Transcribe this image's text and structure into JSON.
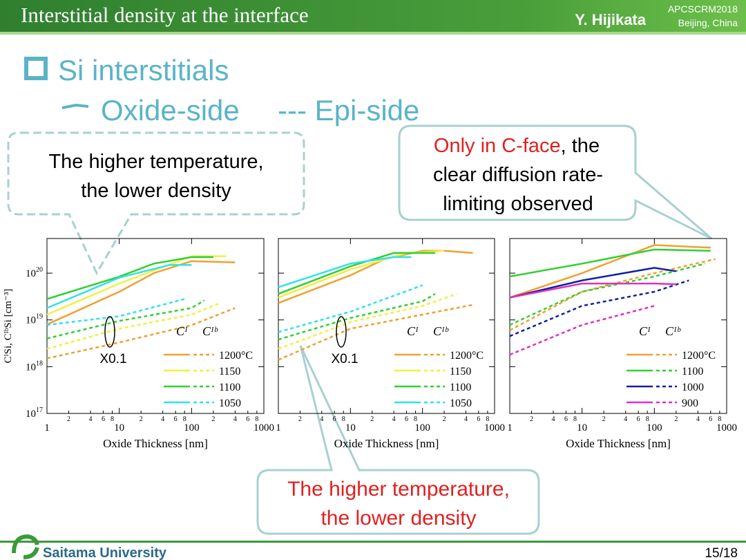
{
  "header": {
    "title": "Interstitial density at the interface",
    "author": "Y. Hijikata",
    "conference": "APCSCRM2018",
    "place": "Beijing, China"
  },
  "bullet": {
    "title": "Si interstitials",
    "oxide": "Oxide-side",
    "epi": "--- Epi-side"
  },
  "callouts": [
    {
      "lines": [
        "The higher temperature,",
        "the lower density"
      ]
    },
    {
      "highlight": "Only in C-face",
      "lines": [
        ", the",
        "clear diffusion rate-",
        "limiting observed"
      ]
    },
    {
      "lines": [
        "The higher temperature,",
        "the lower density"
      ]
    }
  ],
  "chart_data": [
    {
      "type": "line",
      "x_scale": "log",
      "y_scale": "log",
      "xlim": [
        1,
        1000
      ],
      "ylim": [
        1e+17,
        5.5e+20
      ],
      "xticks": [
        1,
        10,
        100,
        1000
      ],
      "xticks_minor": [
        2,
        4,
        6,
        8,
        {
          "value": 20,
          "label": "2"
        },
        {
          "value": 40,
          "label": "4"
        },
        {
          "value": 60,
          "label": "6"
        },
        {
          "value": 80,
          "label": "8"
        },
        {
          "value": 200,
          "label": "2"
        },
        {
          "value": 400,
          "label": "4"
        },
        {
          "value": 600,
          "label": "6"
        },
        {
          "value": 800,
          "label": "8"
        }
      ],
      "yticks": [
        {
          "value": 1e+17,
          "label": "10",
          "exponent": "17"
        },
        {
          "value": 1e+18,
          "label": "10",
          "exponent": "18"
        },
        {
          "value": 1e+19,
          "label": "10",
          "exponent": "19"
        },
        {
          "value": 1e+20,
          "label": "10",
          "exponent": "20"
        }
      ],
      "y_label": "CᴵSi, CᴵᵇSi [cm⁻³]",
      "x_label": "Oxide Thickness [nm]",
      "legend_headers": [
        "Cᴵ",
        "Cᴵᵇ"
      ],
      "annotation": "X0.1",
      "series": [
        {
          "name": "1200°C",
          "color": "#f0a030",
          "x": [
            1,
            10,
            30,
            100,
            400
          ],
          "values": [
            8e+18,
            4e+19,
            1e+20,
            1.8e+20,
            1.7e+20
          ],
          "epi_x": [
            1,
            10,
            100,
            400
          ],
          "epi_values": [
            1.5e+18,
            3.3e+18,
            7.7e+18,
            1.8e+19
          ]
        },
        {
          "name": "1150",
          "color": "#f0f040",
          "x": [
            1,
            10,
            100,
            300
          ],
          "values": [
            1.3e+19,
            6e+19,
            2.3e+20,
            2.3e+20
          ],
          "epi_x": [
            1,
            10,
            100,
            250
          ],
          "epi_values": [
            2.4e+18,
            6.5e+18,
            1.3e+19,
            2.3e+19
          ]
        },
        {
          "name": "1100",
          "color": "#30d030",
          "x": [
            1,
            10,
            30,
            100,
            200
          ],
          "values": [
            2.8e+19,
            8.4e+19,
            1.6e+20,
            2.2e+20,
            2.2e+20
          ],
          "epi_x": [
            1,
            10,
            100,
            150
          ],
          "epi_values": [
            4e+18,
            9.5e+18,
            1.8e+19,
            2.6e+19
          ]
        },
        {
          "name": "1050",
          "color": "#30e0f0",
          "x": [
            1,
            10,
            50,
            100
          ],
          "values": [
            1.8e+19,
            8e+19,
            1.5e+20,
            1.5e+20
          ],
          "epi_x": [
            1,
            10,
            80
          ],
          "epi_values": [
            7.8e+18,
            1.2e+19,
            2.8e+19
          ]
        }
      ]
    },
    {
      "type": "line",
      "x_scale": "log",
      "y_scale": "log",
      "xlim": [
        1,
        1000
      ],
      "ylim": [
        1e+17,
        5.5e+20
      ],
      "xticks": [
        1,
        10,
        100,
        1000
      ],
      "xticks_minor": [
        2,
        4,
        6,
        8,
        {
          "value": 20,
          "label": "2"
        },
        {
          "value": 40,
          "label": "4"
        },
        {
          "value": 60,
          "label": "6"
        },
        {
          "value": 80,
          "label": "8"
        },
        {
          "value": 200,
          "label": "2"
        },
        {
          "value": 400,
          "label": "4"
        },
        {
          "value": 600,
          "label": "6"
        },
        {
          "value": 800,
          "label": "8"
        }
      ],
      "yticks_marks": [
        1e+17,
        1e+18,
        1e+19,
        1e+20
      ],
      "x_label": "Oxide Thickness [nm]",
      "legend_headers": [
        "Cᴵ",
        "Cᴵᵇ"
      ],
      "annotation": "X0.1",
      "series": [
        {
          "name": "1200°C",
          "color": "#f0a030",
          "x": [
            1,
            10,
            30,
            100,
            200,
            500
          ],
          "values": [
            2.3e+19,
            9e+19,
            2e+20,
            3e+20,
            3e+20,
            2.7e+20
          ],
          "epi_x": [
            1,
            10,
            100,
            500
          ],
          "epi_values": [
            1.4e+18,
            6.5e+18,
            1.3e+19,
            2.1e+19
          ]
        },
        {
          "name": "1150",
          "color": "#f0f040",
          "x": [
            1,
            10,
            60,
            200
          ],
          "values": [
            3e+19,
            1.2e+20,
            2.7e+20,
            3e+20
          ],
          "epi_x": [
            1,
            10,
            100,
            300
          ],
          "epi_values": [
            2.4e+18,
            9e+18,
            2e+19,
            3.6e+19
          ]
        },
        {
          "name": "1100",
          "color": "#30d030",
          "x": [
            1,
            10,
            40,
            150
          ],
          "values": [
            3.6e+19,
            1.4e+20,
            2.7e+20,
            2.7e+20
          ],
          "epi_x": [
            1,
            10,
            100,
            150
          ],
          "epi_values": [
            3.8e+18,
            1.1e+19,
            2.5e+19,
            3.6e+19
          ]
        },
        {
          "name": "1050",
          "color": "#30e0f0",
          "x": [
            1,
            10,
            40,
            70
          ],
          "values": [
            5e+19,
            1.6e+20,
            2.2e+20,
            2.2e+20
          ],
          "epi_x": [
            1,
            10,
            100
          ],
          "epi_values": [
            5.5e+18,
            1.5e+19,
            5.5e+19
          ]
        }
      ]
    },
    {
      "type": "line",
      "x_scale": "log",
      "y_scale": "log",
      "xlim": [
        1,
        1000
      ],
      "ylim": [
        1e+17,
        5.5e+20
      ],
      "xticks": [
        1,
        10,
        100,
        1000
      ],
      "xticks_minor": [
        2,
        4,
        6,
        8,
        {
          "value": 20,
          "label": "2"
        },
        {
          "value": 40,
          "label": "4"
        },
        {
          "value": 60,
          "label": "6"
        },
        {
          "value": 80,
          "label": "8"
        },
        {
          "value": 200,
          "label": "2"
        },
        {
          "value": 400,
          "label": "4"
        },
        {
          "value": 600,
          "label": "6"
        },
        {
          "value": 800,
          "label": "8"
        }
      ],
      "yticks_marks": [
        1e+17,
        1e+18,
        1e+19,
        1e+20
      ],
      "x_label": "Oxide Thickness [nm]",
      "legend_headers": [
        "Cᴵ",
        "Cᴵᵇ"
      ],
      "series": [
        {
          "name": "1200°C",
          "color": "#f0a030",
          "x": [
            1,
            10,
            100,
            600
          ],
          "values": [
            3e+19,
            1e+20,
            4e+20,
            3.5e+20
          ],
          "epi_x": [
            1,
            10,
            100,
            700
          ],
          "epi_values": [
            6e+18,
            4e+19,
            1e+20,
            2e+20
          ]
        },
        {
          "name": "1100",
          "color": "#30d030",
          "x": [
            1,
            10,
            100,
            600
          ],
          "values": [
            8.5e+19,
            1.6e+20,
            3.2e+20,
            3e+20
          ],
          "epi_x": [
            1,
            10,
            100,
            500
          ],
          "epi_values": [
            7.8e+18,
            4e+19,
            8.5e+19,
            1.6e+20
          ]
        },
        {
          "name": "1000",
          "color": "#1020a0",
          "x": [
            1,
            10,
            100,
            200
          ],
          "values": [
            3e+19,
            7e+19,
            1.3e+20,
            1.1e+20
          ],
          "epi_x": [
            1,
            10,
            100,
            300
          ],
          "epi_values": [
            4.5e+18,
            2e+19,
            4e+19,
            7e+19
          ]
        },
        {
          "name": "900",
          "color": "#e030c0",
          "x": [
            1,
            10,
            100,
            200
          ],
          "values": [
            3e+19,
            6e+19,
            6e+19,
            5.8e+19
          ],
          "epi_x": [
            1,
            10,
            100
          ],
          "epi_values": [
            1.8e+18,
            7.8e+18,
            2e+19
          ]
        }
      ]
    }
  ],
  "footer": {
    "university": "Saitama University",
    "page": "15/18"
  }
}
